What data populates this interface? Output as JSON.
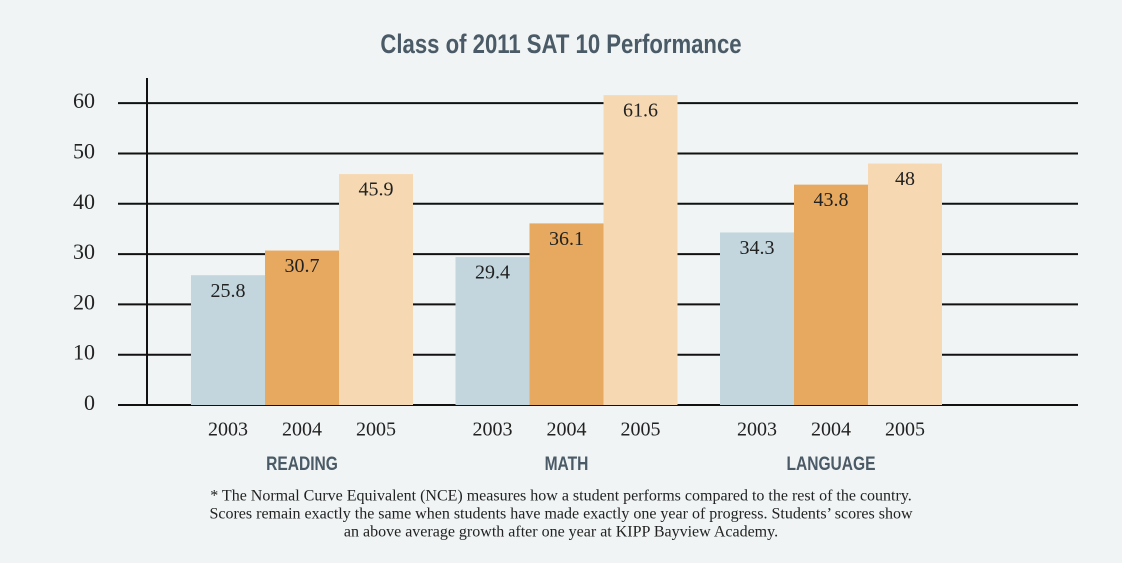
{
  "chart_data": {
    "type": "bar",
    "title": "Class of 2011 SAT 10 Performance",
    "categories": [
      "READING",
      "MATH",
      "LANGUAGE"
    ],
    "series": [
      {
        "name": "2003",
        "color": "#c3d6de",
        "values": [
          25.8,
          29.4,
          34.3
        ]
      },
      {
        "name": "2004",
        "color": "#e6a95f",
        "values": [
          30.7,
          36.1,
          43.8
        ]
      },
      {
        "name": "2005",
        "color": "#f6d9b3",
        "values": [
          45.9,
          61.6,
          48
        ]
      }
    ],
    "ylim": [
      0,
      65
    ],
    "yticks": [
      0,
      10,
      20,
      30,
      40,
      50,
      60
    ],
    "grid": true,
    "note": [
      "* The Normal Curve Equivalent (NCE) measures how a student performs compared to the rest of the country.",
      "Scores remain exactly the same when students have made exactly one year of progress. Students’ scores show",
      "an above average growth after one year at KIPP Bayview Academy."
    ]
  }
}
